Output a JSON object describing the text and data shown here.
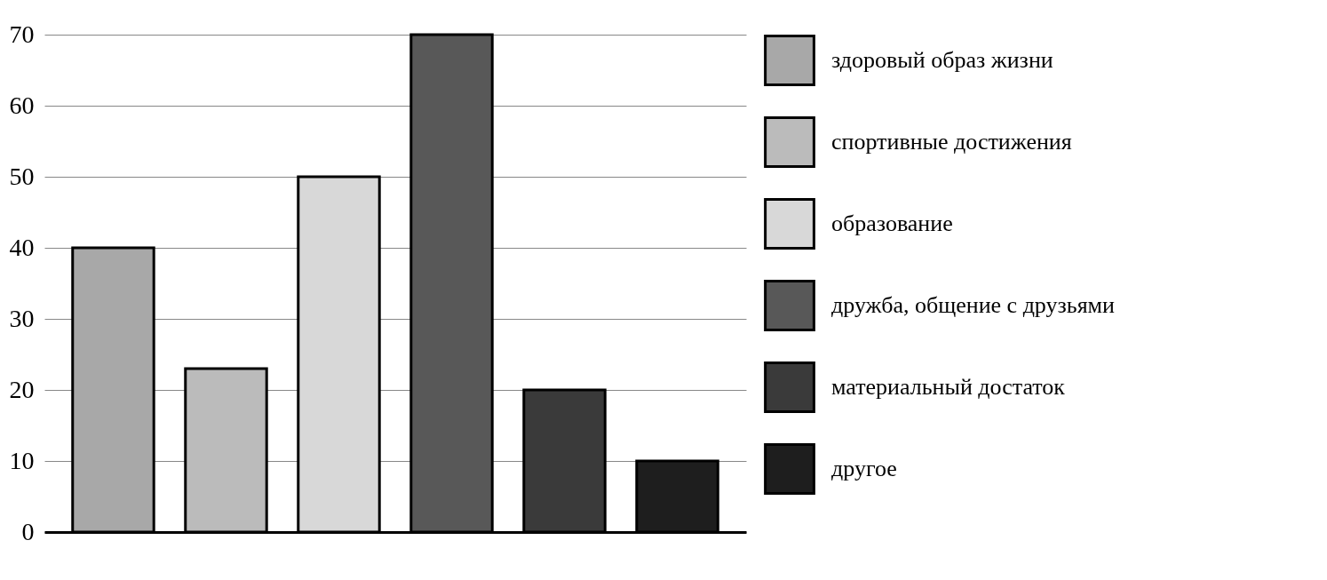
{
  "chart_data": {
    "type": "bar",
    "categories": [
      null,
      null,
      null,
      null,
      null,
      null
    ],
    "series": [
      {
        "name": "здоровый образ жизни",
        "color": "#a8a8a8",
        "values": [
          40,
          null,
          null,
          null,
          null,
          null
        ]
      },
      {
        "name": "спортивные достижения",
        "color": "#bbbbbb",
        "values": [
          null,
          23,
          null,
          null,
          null,
          null
        ]
      },
      {
        "name": "образование",
        "color": "#d8d8d8",
        "values": [
          null,
          null,
          50,
          null,
          null,
          null
        ]
      },
      {
        "name": "дружба, общение с друзьями",
        "color": "#585858",
        "values": [
          null,
          null,
          null,
          70,
          null,
          null
        ]
      },
      {
        "name": "материальный достаток",
        "color": "#3a3a3a",
        "values": [
          null,
          null,
          null,
          null,
          20,
          null
        ]
      },
      {
        "name": "другое",
        "color": "#1e1e1e",
        "values": [
          null,
          null,
          null,
          null,
          null,
          10
        ]
      }
    ],
    "ylim": [
      0,
      70
    ],
    "yticks": [
      0,
      10,
      20,
      30,
      40,
      50,
      60,
      70
    ],
    "grid": "y",
    "legend": "right"
  }
}
